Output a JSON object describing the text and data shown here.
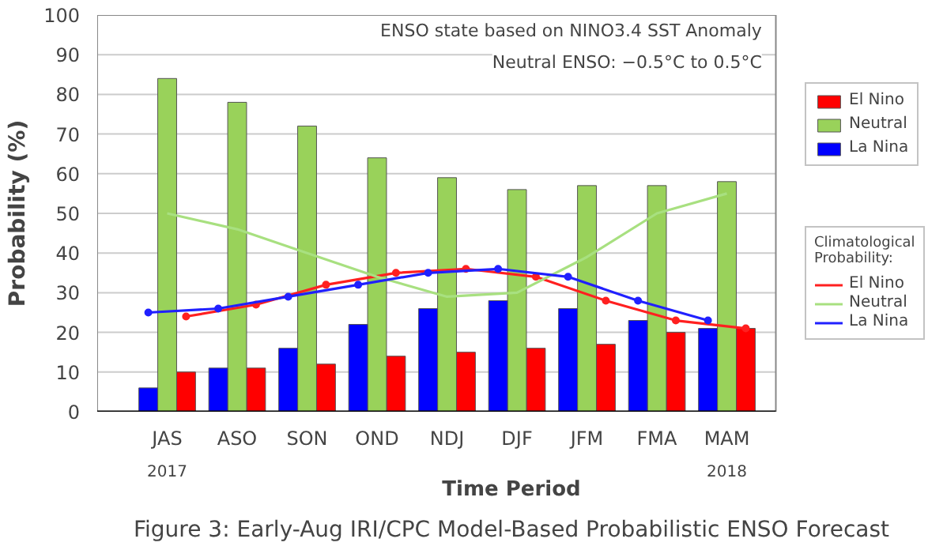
{
  "chart_data": {
    "type": "bar",
    "title": "Figure 3: Early-Aug IRI/CPC Model-Based Probabilistic ENSO Forecast",
    "xlabel": "Time Period",
    "ylabel": "Probability (%)",
    "legend_title": "Climatological Probability:",
    "categories": [
      "JAS",
      "ASO",
      "SON",
      "OND",
      "NDJ",
      "DJF",
      "JFM",
      "FMA",
      "MAM"
    ],
    "series": [
      {
        "name": "El Nino",
        "color": "#ff0000",
        "values": [
          10,
          11,
          12,
          14,
          15,
          16,
          17,
          20,
          21
        ]
      },
      {
        "name": "Neutral",
        "color": "#99d25a",
        "values": [
          84,
          78,
          72,
          64,
          59,
          56,
          57,
          57,
          58
        ]
      },
      {
        "name": "La Nina",
        "color": "#0000ff",
        "values": [
          6,
          11,
          16,
          22,
          26,
          28,
          26,
          23,
          21
        ]
      },
      {
        "name": "El Nino",
        "color": "#ff2020",
        "type": "line",
        "marker": "circle",
        "values": [
          24,
          27,
          32,
          35,
          36,
          34,
          28,
          23,
          21
        ]
      },
      {
        "name": "Neutral",
        "color": "#a8e080",
        "type": "line",
        "marker": "none",
        "values": [
          50,
          46,
          40,
          34,
          29,
          30,
          39,
          50,
          55
        ]
      },
      {
        "name": "La Nina",
        "color": "#2020ff",
        "type": "line",
        "marker": "circle",
        "values": [
          25,
          26,
          29,
          32,
          35,
          36,
          34,
          28,
          23
        ]
      }
    ],
    "annotations": [
      "ENSO state based on NINO3.4 SST Anomaly",
      "Neutral ENSO: −0.5°C to 0.5°C",
      "2017",
      "2018"
    ],
    "ylim": [
      0,
      100
    ],
    "yticks": [
      0,
      10,
      20,
      30,
      40,
      50,
      60,
      70,
      80,
      90,
      100
    ],
    "grid": "y",
    "legend": "right"
  }
}
